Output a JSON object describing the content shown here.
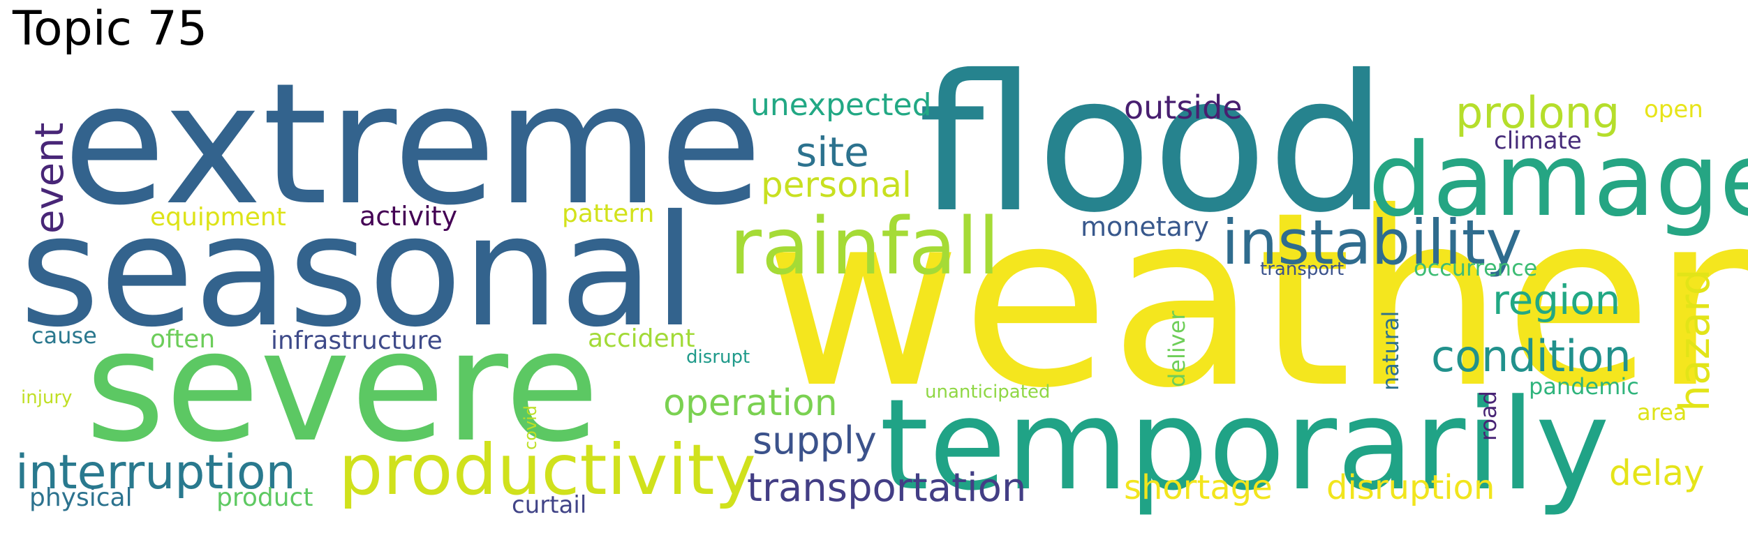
{
  "title": "Topic 75",
  "words": [
    {
      "text": "weather",
      "color": "#f4e61e"
    },
    {
      "text": "flood",
      "color": "#26838e"
    },
    {
      "text": "extreme",
      "color": "#33638d"
    },
    {
      "text": "seasonal",
      "color": "#33638d"
    },
    {
      "text": "severe",
      "color": "#5cc863"
    },
    {
      "text": "temporarily",
      "color": "#20a386"
    },
    {
      "text": "damage",
      "color": "#25a583"
    },
    {
      "text": "rainfall",
      "color": "#a5db36"
    },
    {
      "text": "productivity",
      "color": "#d0e11c"
    },
    {
      "text": "instability",
      "color": "#2f6c8e"
    },
    {
      "text": "interruption",
      "color": "#29798e"
    },
    {
      "text": "prolong",
      "color": "#b5de2b"
    },
    {
      "text": "transportation",
      "color": "#433e85"
    },
    {
      "text": "condition",
      "color": "#21918c"
    },
    {
      "text": "region",
      "color": "#22a884"
    },
    {
      "text": "shortage",
      "color": "#f2e51d"
    },
    {
      "text": "disruption",
      "color": "#f1e51d"
    },
    {
      "text": "site",
      "color": "#2c728e"
    },
    {
      "text": "hazard",
      "color": "#e2e418"
    },
    {
      "text": "operation",
      "color": "#7ad151"
    },
    {
      "text": "supply",
      "color": "#3b528b"
    },
    {
      "text": "personal",
      "color": "#c8e020"
    },
    {
      "text": "event",
      "color": "#482677"
    },
    {
      "text": "unexpected",
      "color": "#22a884"
    },
    {
      "text": "outside",
      "color": "#481f70"
    },
    {
      "text": "delay",
      "color": "#e5e419"
    },
    {
      "text": "monetary",
      "color": "#38588c"
    },
    {
      "text": "activity",
      "color": "#440154"
    },
    {
      "text": "equipment",
      "color": "#dde318"
    },
    {
      "text": "pattern",
      "color": "#d2e21b"
    },
    {
      "text": "infrastructure",
      "color": "#3e4a89"
    },
    {
      "text": "accident",
      "color": "#a2da37"
    },
    {
      "text": "often",
      "color": "#6ccd5a"
    },
    {
      "text": "cause",
      "color": "#2a788e"
    },
    {
      "text": "physical",
      "color": "#2c728e"
    },
    {
      "text": "product",
      "color": "#5ec962"
    },
    {
      "text": "curtail",
      "color": "#414487"
    },
    {
      "text": "climate",
      "color": "#472c7a"
    },
    {
      "text": "open",
      "color": "#e7e419"
    },
    {
      "text": "occurrence",
      "color": "#3dbc74"
    },
    {
      "text": "transport",
      "color": "#3b528b"
    },
    {
      "text": "deliver",
      "color": "#6ece58"
    },
    {
      "text": "natural",
      "color": "#2d708e"
    },
    {
      "text": "road",
      "color": "#482475"
    },
    {
      "text": "pandemic",
      "color": "#2fb47c"
    },
    {
      "text": "area",
      "color": "#dde318"
    },
    {
      "text": "unanticipated",
      "color": "#8fd744"
    },
    {
      "text": "disrupt",
      "color": "#1f9a8a"
    },
    {
      "text": "covid",
      "color": "#bddf26"
    },
    {
      "text": "injury",
      "color": "#c0df25"
    }
  ]
}
